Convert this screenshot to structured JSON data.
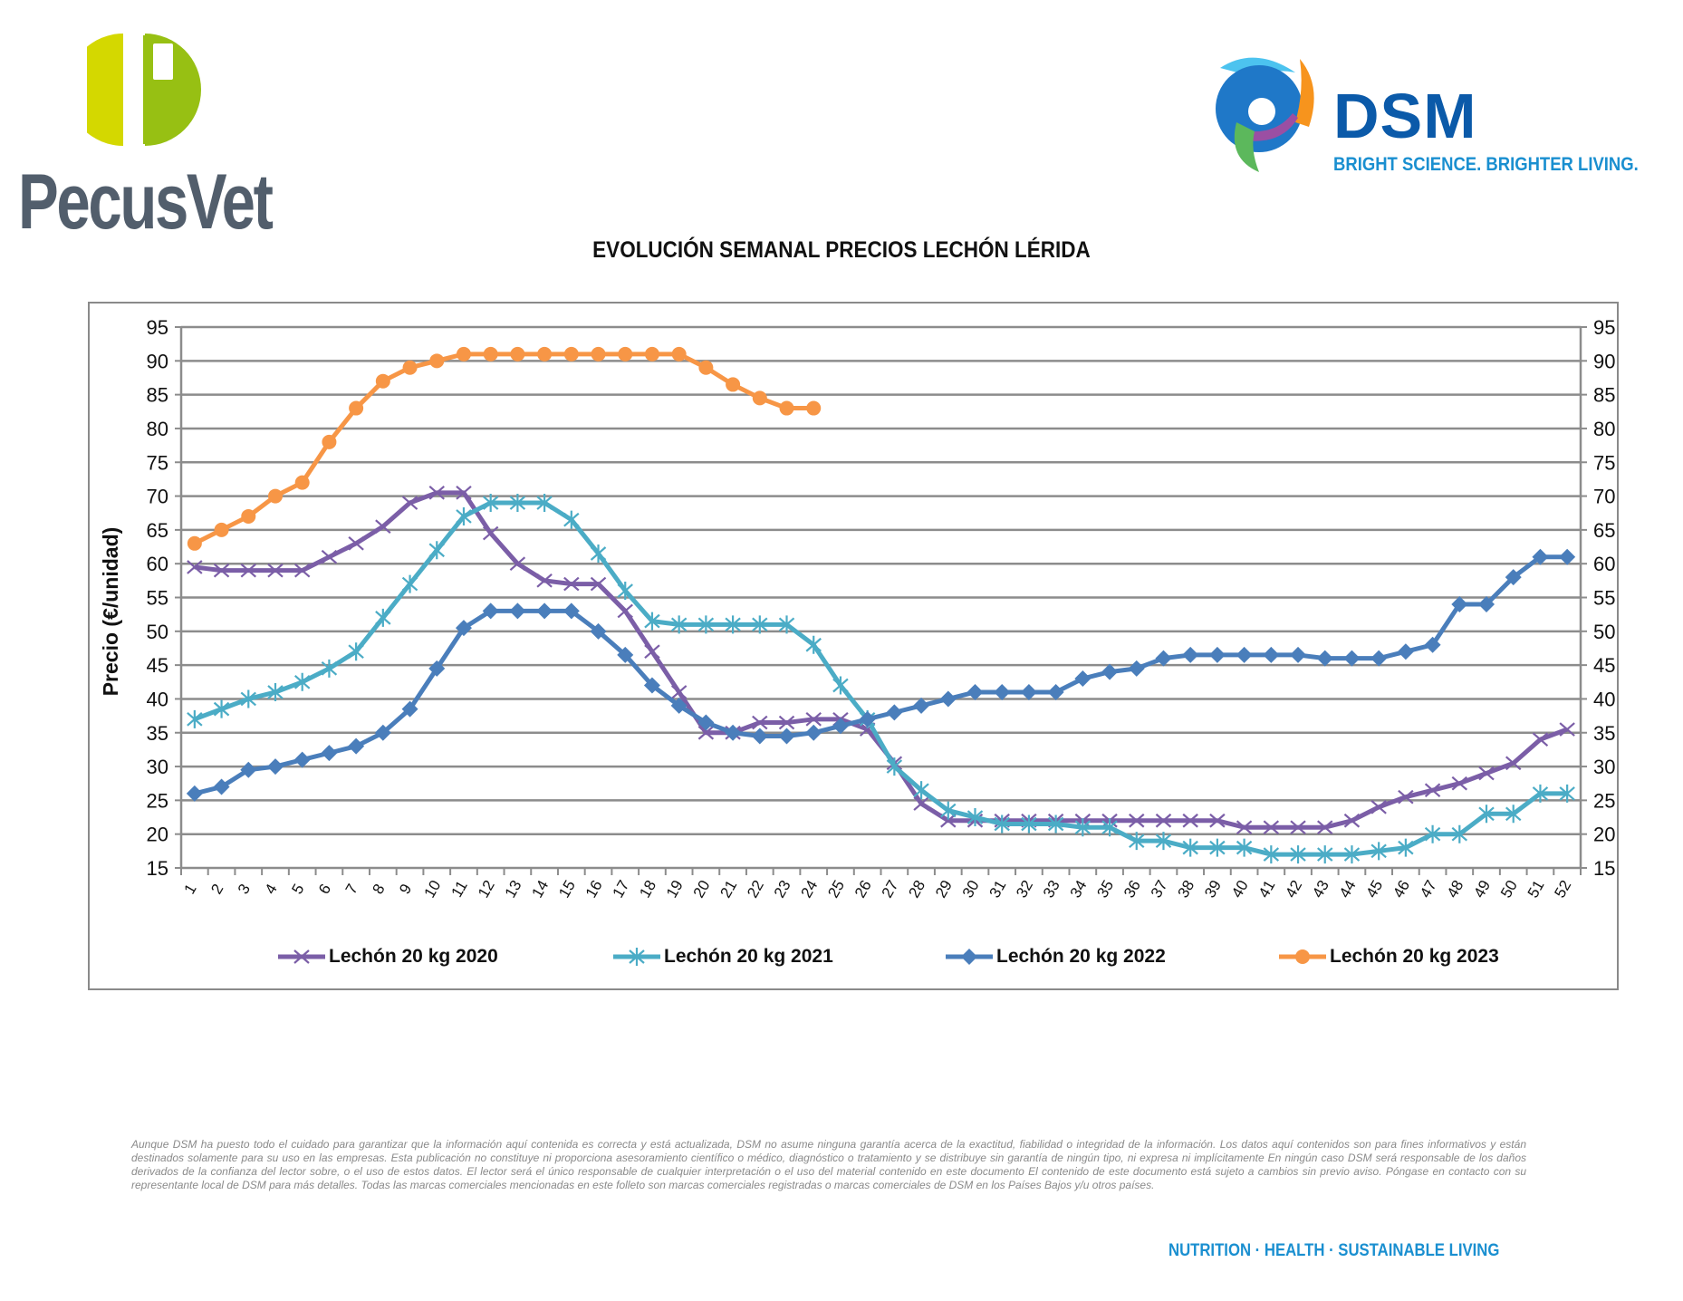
{
  "header": {
    "left_logo": {
      "name": "PecusVet",
      "mark_letter": "P",
      "colors": {
        "left": "#d4d800",
        "right": "#97c013",
        "text": "#525e6c"
      }
    },
    "right_logo": {
      "name": "DSM",
      "tagline": "BRIGHT SCIENCE. BRIGHTER LIVING.",
      "colors": {
        "word": "#0b5aa9",
        "tagline": "#1a8fd0"
      }
    }
  },
  "chart_data": {
    "type": "line",
    "title": "EVOLUCIÓN SEMANAL PRECIOS LECHÓN LÉRIDA",
    "xlabel": "",
    "ylabel": "Precio (€/unidad)",
    "ylim": [
      15,
      95
    ],
    "yticks": [
      15,
      20,
      25,
      30,
      35,
      40,
      45,
      50,
      55,
      60,
      65,
      70,
      75,
      80,
      85,
      90,
      95
    ],
    "secondary_y_axis": true,
    "grid": true,
    "legend_position": "bottom",
    "x": [
      1,
      2,
      3,
      4,
      5,
      6,
      7,
      8,
      9,
      10,
      11,
      12,
      13,
      14,
      15,
      16,
      17,
      18,
      19,
      20,
      21,
      22,
      23,
      24,
      25,
      26,
      27,
      28,
      29,
      30,
      31,
      32,
      33,
      34,
      35,
      36,
      37,
      38,
      39,
      40,
      41,
      42,
      43,
      44,
      45,
      46,
      47,
      48,
      49,
      50,
      51,
      52
    ],
    "series": [
      {
        "name": "Lechón 20 kg 2020",
        "color": "#7b5ea7",
        "marker": "x",
        "values": [
          59.5,
          59,
          59,
          59,
          59,
          61,
          63,
          65.5,
          69,
          70.5,
          70.5,
          64.5,
          60,
          57.5,
          57,
          57,
          53,
          47,
          41,
          35,
          35,
          36.5,
          36.5,
          37,
          37,
          35.5,
          30.5,
          24.5,
          22,
          22,
          22,
          22,
          22,
          22,
          22,
          22,
          22,
          22,
          22,
          21,
          21,
          21,
          21,
          22,
          24,
          25.5,
          26.5,
          27.5,
          29,
          30.5,
          34,
          35.5
        ]
      },
      {
        "name": "Lechón 20 kg 2021",
        "color": "#4bacc6",
        "marker": "star",
        "values": [
          37,
          38.5,
          40,
          41,
          42.5,
          44.5,
          47,
          52,
          57,
          62,
          67,
          69,
          69,
          69,
          66.5,
          61.5,
          56,
          51.5,
          51,
          51,
          51,
          51,
          51,
          48,
          42,
          37,
          30,
          26.5,
          23.5,
          22.5,
          21.5,
          21.5,
          21.5,
          21,
          21,
          19,
          19,
          18,
          18,
          18,
          17,
          17,
          17,
          17,
          17.5,
          18,
          20,
          20,
          23,
          23,
          26,
          26
        ]
      },
      {
        "name": "Lechón 20 kg 2022",
        "color": "#4a7ebb",
        "marker": "diamond",
        "values": [
          26,
          27,
          29.5,
          30,
          31,
          32,
          33,
          35,
          38.5,
          44.5,
          50.5,
          53,
          53,
          53,
          53,
          50,
          46.5,
          42,
          39,
          36.5,
          35,
          34.5,
          34.5,
          35,
          36,
          37,
          38,
          39,
          40,
          41,
          41,
          41,
          41,
          43,
          44,
          44.5,
          46,
          46.5,
          46.5,
          46.5,
          46.5,
          46.5,
          46,
          46,
          46,
          47,
          48,
          54,
          54,
          58,
          61,
          61
        ]
      },
      {
        "name": "Lechón 20 kg 2023",
        "color": "#f79646",
        "marker": "circle",
        "values": [
          63,
          65,
          67,
          70,
          72,
          78,
          83,
          87,
          89,
          90,
          91,
          91,
          91,
          91,
          91,
          91,
          91,
          91,
          91,
          89,
          86.5,
          84.5,
          83,
          83
        ]
      }
    ]
  },
  "disclaimer": "Aunque DSM ha puesto todo el cuidado para garantizar que la información aquí contenida es correcta y está actualizada, DSM no asume ninguna garantía acerca de la exactitud, fiabilidad o integridad de la información. Los datos aquí contenidos son para fines informativos y están destinados solamente para su uso en las empresas. Esta publicación no constituye ni proporciona asesoramiento científico o médico, diagnóstico o tratamiento y se distribuye sin garantía de ningún tipo, ni expresa ni implícitamente En ningún caso DSM será responsable de los daños derivados de la confianza del lector sobre, o el uso de estos datos. El lector será el único responsable de cualquier interpretación o el uso del material contenido en este documento El contenido de este documento está sujeto a cambios sin previo aviso. Póngase en contacto con su representante local de DSM para más detalles. Todas las marcas comerciales mencionadas en este folleto son marcas comerciales registradas o marcas comerciales de DSM en los Países Bajos y/u otros países.",
  "footer": {
    "tagline": "NUTRITION  ·  HEALTH  ·  SUSTAINABLE LIVING"
  }
}
